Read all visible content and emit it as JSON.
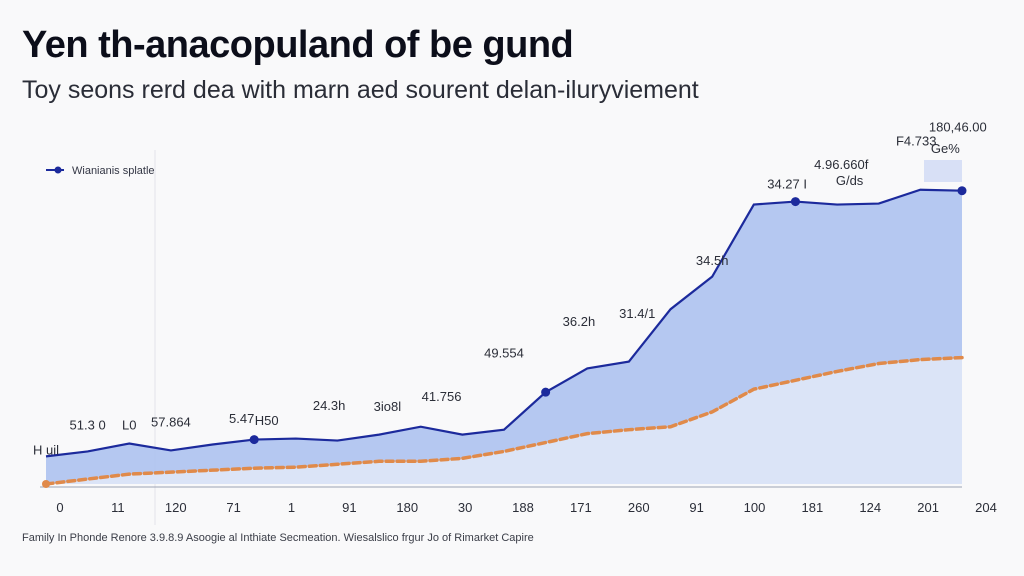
{
  "chart_data": {
    "type": "area",
    "title": "Yen th-anacopuland of be gund",
    "subtitle": "Toy seons rerd dea with marn aed sourent delan-iluryviement",
    "footnote": "Family In Phonde Renore 3.9.8.9 Asoogie al Inthiate Secmeation. Wiesalslico frgur Jo of Rimarket Capire",
    "legend": {
      "label": "Wianianis splatle",
      "position": "top-left"
    },
    "categories": [
      "0",
      "11",
      "120",
      "71",
      "1",
      "91",
      "180",
      "30",
      "188",
      "171",
      "260",
      "91",
      "100",
      "181",
      "124",
      "201",
      "204"
    ],
    "x": [
      0,
      1,
      2,
      3,
      4,
      5,
      6,
      7,
      8,
      9,
      10,
      11,
      12,
      13,
      14,
      15,
      16,
      17,
      18,
      19,
      20,
      21,
      22
    ],
    "series": [
      {
        "name": "Wianianis splatle",
        "color": "#1c2a9c",
        "fill": "#adc2ef",
        "values": [
          28,
          33,
          41,
          34,
          40,
          45,
          46,
          44,
          50,
          58,
          50,
          55,
          93,
          117,
          124,
          177,
          210,
          283,
          286,
          283,
          284,
          298,
          297
        ],
        "markers": [
          5,
          12,
          18,
          22
        ]
      },
      {
        "name": "",
        "color": "#e08a4a",
        "fill": "#dde6f7",
        "values": [
          0,
          5,
          10,
          12,
          14,
          16,
          17,
          20,
          23,
          23,
          26,
          33,
          42,
          51,
          55,
          58,
          73,
          96,
          105,
          114,
          122,
          126,
          128
        ]
      }
    ],
    "ylim": [
      0,
      320
    ],
    "data_labels": [
      {
        "text": "H uil",
        "x": 0,
        "y": 30
      },
      {
        "text": "51.3 0",
        "x": 1,
        "y": 55
      },
      {
        "text": "L0",
        "x": 2,
        "y": 55
      },
      {
        "text": "57.864",
        "x": 3,
        "y": 58
      },
      {
        "text": "5.47",
        "x": 4.7,
        "y": 62
      },
      {
        "text": "H50",
        "x": 5.3,
        "y": 60
      },
      {
        "text": "24.3h",
        "x": 6.8,
        "y": 75
      },
      {
        "text": "3io8l",
        "x": 8.2,
        "y": 74
      },
      {
        "text": "41.756",
        "x": 9.5,
        "y": 84
      },
      {
        "text": "49.554",
        "x": 11,
        "y": 128
      },
      {
        "text": "36.2h",
        "x": 12.8,
        "y": 160
      },
      {
        "text": "31.4/1",
        "x": 14.2,
        "y": 168
      },
      {
        "text": "34.5h",
        "x": 16,
        "y": 222
      },
      {
        "text": "34.27 I",
        "x": 17.8,
        "y": 299
      },
      {
        "text": "4.96.660f",
        "x": 19.1,
        "y": 319
      },
      {
        "text": "G/ds",
        "x": 19.3,
        "y": 303
      },
      {
        "text": "F4.733",
        "x": 20.9,
        "y": 343
      },
      {
        "text": "Ge%",
        "x": 21.6,
        "y": 335
      },
      {
        "text": "180,46.00",
        "x": 21.9,
        "y": 357
      }
    ]
  }
}
